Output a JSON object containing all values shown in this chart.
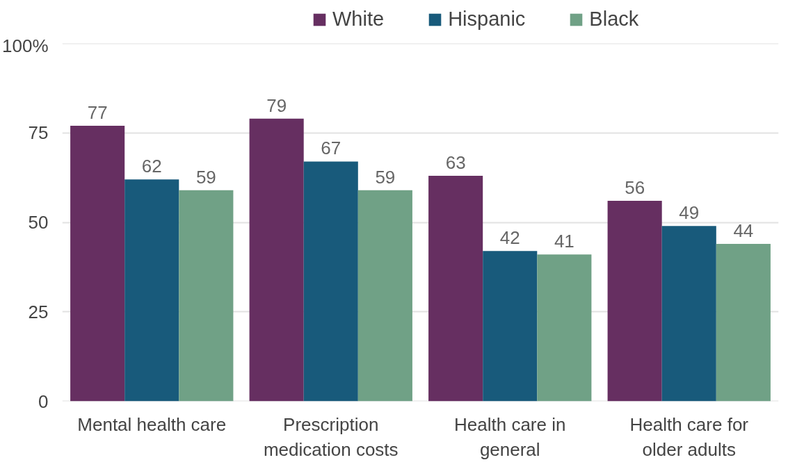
{
  "chart_data": {
    "type": "bar",
    "categories": [
      "Mental health care",
      "Prescription medication costs",
      "Health care in general",
      "Health care for older adults"
    ],
    "series": [
      {
        "name": "White",
        "color": "#662f61",
        "values": [
          77,
          79,
          63,
          56
        ]
      },
      {
        "name": "Hispanic",
        "color": "#185a7b",
        "values": [
          62,
          67,
          42,
          49
        ]
      },
      {
        "name": "Black",
        "color": "#70a186",
        "values": [
          59,
          59,
          41,
          44
        ]
      }
    ],
    "ylim": [
      0,
      100
    ],
    "yticks": [
      0,
      25,
      50,
      75,
      {
        "value": 100,
        "label": "100%"
      }
    ],
    "grid": "y",
    "legend": "top",
    "data_labels": true
  }
}
